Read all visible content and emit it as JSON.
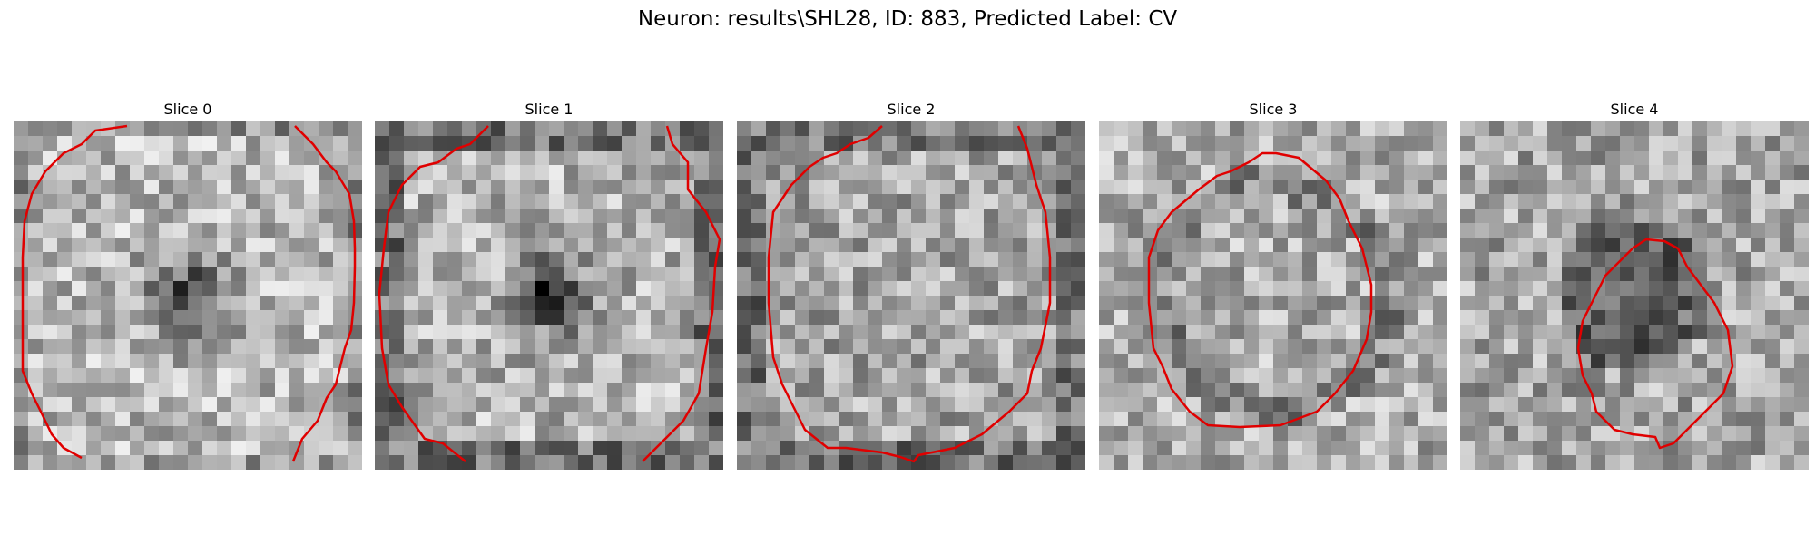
{
  "figure": {
    "title": "Neuron: results\\SHL28, ID: 883, Predicted Label: CV",
    "contour_color": "#e00000"
  },
  "panels": [
    {
      "title": "Slice 0"
    },
    {
      "title": "Slice 1"
    },
    {
      "title": "Slice 2"
    },
    {
      "title": "Slice 3"
    },
    {
      "title": "Slice 4"
    }
  ]
}
